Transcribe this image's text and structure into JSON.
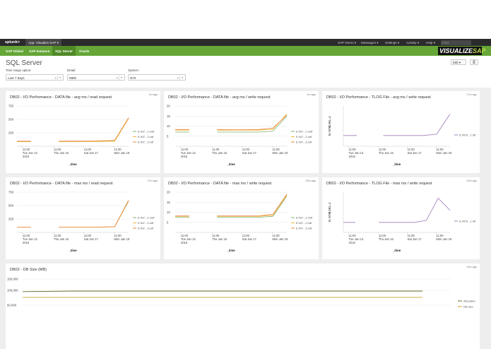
{
  "topbar": {
    "logo": "splunk>",
    "app": "App: Visualize SAP ▾",
    "menus": [
      "SAP Demo ▾",
      "Messages ▾",
      "Settings ▾",
      "Activity ▾",
      "Help ▾"
    ],
    "find": "Find"
  },
  "nav": {
    "items": [
      "SAP Global",
      "SAP Instance",
      "SQL Server",
      "Oracle"
    ],
    "active": 2
  },
  "brand": {
    "text1": "VISUALIZE",
    "text2": "SAP"
  },
  "page": {
    "title": "SQL Server",
    "edit": "Edit ▾",
    "print": "⎙"
  },
  "filters": [
    {
      "label": "Time range option:",
      "value": "Last 7 days"
    },
    {
      "label": "Detail:",
      "value": "MED"
    },
    {
      "label": "System:",
      "value": "N70"
    }
  ],
  "colors": {
    "s1": "#7eb26d",
    "s2": "#eab839",
    "s3": "#ef843c",
    "tlog": "#a07bb5",
    "alloc": "#6d6b2b",
    "dbsize": "#c8a02a"
  },
  "panels": [
    {
      "title": "DB02 - I/O Performance - DATA file - avg ms / read request",
      "ago": "1m ago",
      "yticks": [
        "750",
        "500",
        "250"
      ],
      "ymax": 750,
      "xticks": [
        [
          "11:00",
          "Tue Jan 13",
          "2015"
        ],
        [
          "11:00",
          "Thu Jan 15",
          ""
        ],
        [
          "11:00",
          "Sat Jan 17",
          ""
        ],
        [
          "11:00",
          "Mon Jan 19",
          ""
        ]
      ],
      "xtitle": "_time",
      "legend": [
        "E:\\N7...1.mdf",
        "E:\\N7...2.ndf",
        "E:\\N7...3.ndf"
      ],
      "chart_data": {
        "type": "line",
        "x": [
          "Jan 12",
          "Jan 13",
          "Jan 14",
          "Jan 15",
          "Jan 16",
          "Jan 17",
          "Jan 18",
          "Jan 19",
          "Jan 20"
        ],
        "series": [
          {
            "name": "E:\\N7...1.mdf",
            "values": [
              90,
              90,
              null,
              90,
              90,
              90,
              95,
              100,
              520
            ]
          },
          {
            "name": "E:\\N7...2.ndf",
            "values": [
              85,
              85,
              null,
              85,
              85,
              85,
              90,
              95,
              515
            ]
          },
          {
            "name": "E:\\N7...3.ndf",
            "values": [
              95,
              95,
              null,
              95,
              95,
              95,
              100,
              110,
              530
            ]
          }
        ]
      }
    },
    {
      "title": "DB02 - I/O Performance - DATA file - avg ms / write request",
      "ago": "1m ago",
      "yticks": [
        "20",
        "15",
        "10",
        "5"
      ],
      "ymax": 20,
      "xticks": [
        [
          "11:00",
          "Tue Jan 13",
          "2015"
        ],
        [
          "11:00",
          "Thu Jan 15",
          ""
        ],
        [
          "11:00",
          "Sat Jan 17",
          ""
        ],
        [
          "11:00",
          "Mon Jan 19",
          ""
        ]
      ],
      "xtitle": "_time",
      "legend": [
        "E:\\N7...1.mdf",
        "E:\\N7...2.ndf",
        "E:\\N7...3.ndf"
      ],
      "chart_data": {
        "type": "line",
        "x": [
          "Jan 12",
          "Jan 13",
          "Jan 14",
          "Jan 15",
          "Jan 16",
          "Jan 17",
          "Jan 18",
          "Jan 19",
          "Jan 20"
        ],
        "series": [
          {
            "name": "E:\\N7...1.mdf",
            "values": [
              7,
              7,
              null,
              7,
              7,
              7,
              7,
              7.5,
              15
            ]
          },
          {
            "name": "E:\\N7...2.ndf",
            "values": [
              8,
              8,
              null,
              8,
              8,
              8,
              8,
              8.5,
              16
            ]
          },
          {
            "name": "E:\\N7...3.ndf",
            "values": [
              8.3,
              8.3,
              null,
              8.3,
              8.2,
              8.2,
              8.3,
              9,
              15.5
            ]
          }
        ]
      }
    },
    {
      "title": "DB02 - I/O Performance - TLOG File - avg ms / write request",
      "ago": "17m ago",
      "yticks": [],
      "ymax": 30,
      "yaxis": "E:\\N70LOG...l",
      "xticks": [
        [
          "11:00",
          "Tue Jan 13",
          "2015"
        ],
        [
          "11:00",
          "Thu Jan 15",
          ""
        ],
        [
          "11:00",
          "Sat Jan 17",
          ""
        ],
        [
          "11:00",
          "Mon Jan 19",
          ""
        ]
      ],
      "xtitle": "_time",
      "legend": [
        "E:\\N70...1.ldf"
      ],
      "chart_data": {
        "type": "line",
        "x": [
          "Jan 12",
          "Jan 13",
          "Jan 14",
          "Jan 15",
          "Jan 16",
          "Jan 17",
          "Jan 18",
          "Jan 19",
          "Jan 20"
        ],
        "series": [
          {
            "name": "E:\\N70...1.ldf",
            "values": [
              8,
              8,
              null,
              8,
              8,
              8,
              8,
              9,
              24
            ]
          }
        ]
      }
    },
    {
      "title": "DB02 - I/O Performance - DATA file - max ms / read request",
      "ago": "17m ago",
      "yticks": [
        "750",
        "500",
        "250"
      ],
      "ymax": 750,
      "xticks": [
        [
          "11:00",
          "Tue Jan 13",
          "2015"
        ],
        [
          "11:00",
          "Thu Jan 15",
          ""
        ],
        [
          "11:00",
          "Sat Jan 17",
          ""
        ],
        [
          "11:00",
          "Mon Jan 19",
          ""
        ]
      ],
      "xtitle": "_time",
      "legend": [
        "E:\\N7...1.mdf",
        "E:\\N7...2.ndf",
        "E:\\N7...3.ndf"
      ],
      "chart_data": {
        "type": "line",
        "x": [
          "Jan 12",
          "Jan 13",
          "Jan 14",
          "Jan 15",
          "Jan 16",
          "Jan 17",
          "Jan 18",
          "Jan 19",
          "Jan 20"
        ],
        "series": [
          {
            "name": "E:\\N7...1.mdf",
            "values": [
              100,
              100,
              null,
              100,
              100,
              100,
              100,
              105,
              580
            ]
          },
          {
            "name": "E:\\N7...2.ndf",
            "values": [
              100,
              100,
              null,
              100,
              100,
              100,
              100,
              105,
              590
            ]
          },
          {
            "name": "E:\\N7...3.ndf",
            "values": [
              100,
              100,
              null,
              100,
              100,
              100,
              100,
              108,
              600
            ]
          }
        ]
      }
    },
    {
      "title": "DB02 - I/O Performance - DATA file - max ms / write request",
      "ago": "13m ago",
      "yticks": [
        "20",
        "15",
        "10",
        "5"
      ],
      "ymax": 20,
      "xticks": [
        [
          "11:00",
          "Tue Jan 13",
          "2015"
        ],
        [
          "11:00",
          "Thu Jan 15",
          ""
        ],
        [
          "11:00",
          "Sat Jan 17",
          ""
        ],
        [
          "11:00",
          "Mon Jan 19",
          ""
        ]
      ],
      "xtitle": "_time",
      "legend": [
        "E:\\N7...1.mdf",
        "E:\\N7...2.ndf",
        "E:\\N7...3.ndf"
      ],
      "chart_data": {
        "type": "line",
        "x": [
          "Jan 12",
          "Jan 13",
          "Jan 14",
          "Jan 15",
          "Jan 16",
          "Jan 17",
          "Jan 18",
          "Jan 19",
          "Jan 20"
        ],
        "series": [
          {
            "name": "E:\\N7...1.mdf",
            "values": [
              7.5,
              7.5,
              null,
              7.5,
              7.5,
              7.5,
              7.5,
              8,
              18
            ]
          },
          {
            "name": "E:\\N7...2.ndf",
            "values": [
              8,
              8,
              null,
              8,
              8,
              8,
              8,
              8.5,
              18.5
            ]
          },
          {
            "name": "E:\\N7...3.ndf",
            "values": [
              8.2,
              8.2,
              null,
              8.2,
              8.2,
              8.2,
              8.2,
              9,
              19
            ]
          }
        ]
      }
    },
    {
      "title": "DB02 - I/O Performance - TLOG File - max ms / write request",
      "ago": "13m ago",
      "yticks": [],
      "ymax": 40,
      "yaxis": "E:\\N70LOG...l",
      "xticks": [
        [
          "11:00",
          "Tue Jan 13",
          "2015"
        ],
        [
          "11:00",
          "Thu Jan 15",
          ""
        ],
        [
          "11:00",
          "Sat Jan 17",
          ""
        ],
        [
          "11:00",
          "Mon Jan 19",
          ""
        ]
      ],
      "xtitle": "_time",
      "legend": [
        "E:\\N70...1.ldf"
      ],
      "chart_data": {
        "type": "line",
        "x": [
          "Jan 12",
          "Jan 13",
          "Jan 14",
          "Jan 15",
          "Jan 16",
          "Jan 17",
          "Jan 18",
          "Jan 19",
          "Jan 19.5",
          "Jan 20"
        ],
        "series": [
          {
            "name": "E:\\N70...1.ldf",
            "values": [
              10,
              10,
              null,
              10,
              10,
              10,
              10,
              12,
              34,
              22
            ]
          }
        ]
      }
    }
  ],
  "dbsize": {
    "title": "DB02 - DB Size (MB)",
    "ago": "13m ago",
    "yticks": [
      "150,000",
      "100,000",
      "50,000"
    ],
    "legend": [
      "Allocated",
      "DB size"
    ],
    "chart_data": {
      "type": "line",
      "x": [
        "Jan 12",
        "Jan 13",
        "Jan 14",
        "Jan 15",
        "Jan 16",
        "Jan 17",
        "Jan 18",
        "Jan 19",
        "Jan 20"
      ],
      "ylim": [
        50000,
        150000
      ],
      "series": [
        {
          "name": "Allocated",
          "values": [
            102000,
            104000,
            104000,
            104000,
            104000,
            104000,
            104000,
            104000,
            104000
          ]
        },
        {
          "name": "DB size",
          "values": [
            80000,
            80000,
            80000,
            80000,
            80000,
            80000,
            80000,
            80000,
            80000
          ]
        }
      ]
    }
  }
}
